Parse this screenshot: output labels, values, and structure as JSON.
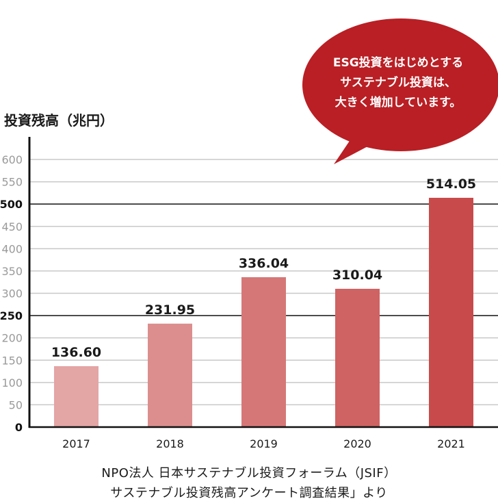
{
  "chart_data": {
    "type": "bar",
    "ylabel": "投資残高（兆円）",
    "categories": [
      "2017",
      "2018",
      "2019",
      "2020",
      "2021"
    ],
    "values": [
      136.6,
      231.95,
      336.04,
      310.04,
      514.05
    ],
    "value_labels": [
      "136.60",
      "231.95",
      "336.04",
      "310.04",
      "514.05"
    ],
    "ylim": [
      0,
      600
    ],
    "yticks": [
      "0",
      "50",
      "100",
      "150",
      "200",
      "250",
      "300",
      "350",
      "400",
      "450",
      "500",
      "550",
      "600"
    ],
    "emphasized_gridlines": [
      "250",
      "500"
    ],
    "grid": true,
    "bar_colors": [
      "#e4a5a5",
      "#dc8e8e",
      "#d67777",
      "#cf6262",
      "#c84a4a"
    ]
  },
  "callout": {
    "lines": [
      "ESG投資をはじめとする",
      "サステナブル投資は、",
      "大きく増加しています。"
    ],
    "color": "#b91f24"
  },
  "source": {
    "line1": "NPO法人  日本サステナブル投資フォーラム（JSIF）",
    "line2": "サステナブル投資残高アンケート調査結果」より"
  }
}
